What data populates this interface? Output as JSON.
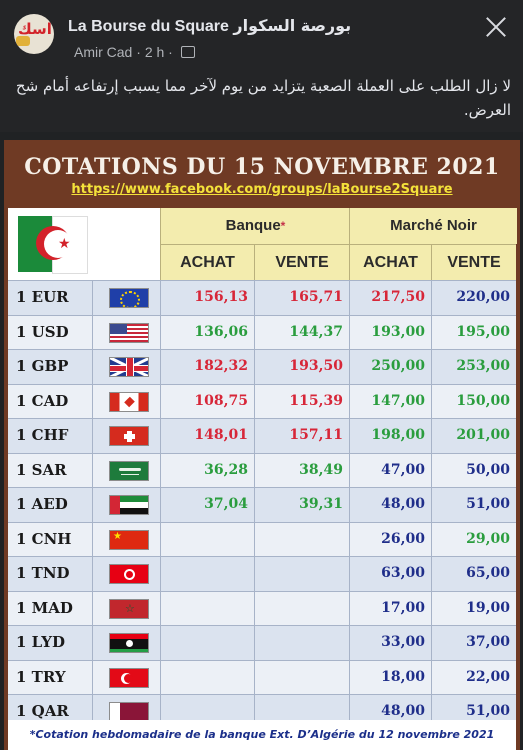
{
  "header": {
    "group_name": "La Bourse du Square",
    "group_name_ar": "بورصة السكوار",
    "author": "Amir Cad",
    "time": "2 h",
    "avatar_text": "اسك"
  },
  "post": {
    "text": "لا زال الطلب على العملة الصعبة يتزايد من يوم لآخر مما يسبب إرتفاعه أمام شح العرض."
  },
  "card": {
    "title": "COTATIONS DU 15 NOVEMBRE 2021",
    "link": "https://www.facebook.com/groups/laBourse2Square",
    "banque_label": "Banque",
    "banque_mark": "*",
    "marche_label": "Marché Noir",
    "achat_label": "ACHAT",
    "vente_label": "VENTE",
    "footer": "*Cotation hebdomadaire de la banque Ext. D’Algérie du 12 novembre 2021"
  },
  "rows": [
    {
      "code": "1 EUR",
      "flag": "eu-flag",
      "b_achat": "156,13",
      "b_vente": "165,71",
      "m_achat": "217,50",
      "m_vente": "220,00",
      "m_achat_color": "red"
    },
    {
      "code": "1 USD",
      "flag": "us-flag",
      "b_achat": "136,06",
      "b_vente": "144,37",
      "m_achat": "193,00",
      "m_vente": "195,00",
      "b_color": "green",
      "m_achat_color": "green",
      "m_vente_color": "green"
    },
    {
      "code": "1 GBP",
      "flag": "uk-flag",
      "b_achat": "182,32",
      "b_vente": "193,50",
      "m_achat": "250,00",
      "m_vente": "253,00",
      "m_achat_color": "green",
      "m_vente_color": "green"
    },
    {
      "code": "1 CAD",
      "flag": "ca-flag",
      "b_achat": "108,75",
      "b_vente": "115,39",
      "m_achat": "147,00",
      "m_vente": "150,00",
      "m_achat_color": "green",
      "m_vente_color": "green"
    },
    {
      "code": "1 CHF",
      "flag": "ch-flag",
      "b_achat": "148,01",
      "b_vente": "157,11",
      "m_achat": "198,00",
      "m_vente": "201,00",
      "m_achat_color": "green",
      "m_vente_color": "green"
    },
    {
      "code": "1 SAR",
      "flag": "sa-flag",
      "b_achat": "36,28",
      "b_vente": "38,49",
      "m_achat": "47,00",
      "m_vente": "50,00",
      "b_color": "green"
    },
    {
      "code": "1 AED",
      "flag": "ae-flag",
      "b_achat": "37,04",
      "b_vente": "39,31",
      "m_achat": "48,00",
      "m_vente": "51,00",
      "b_color": "green"
    },
    {
      "code": "1 CNH",
      "flag": "cn-flag",
      "b_achat": "",
      "b_vente": "",
      "m_achat": "26,00",
      "m_vente": "29,00",
      "m_vente_color": "green"
    },
    {
      "code": "1 TND",
      "flag": "tn-flag",
      "b_achat": "",
      "b_vente": "",
      "m_achat": "63,00",
      "m_vente": "65,00"
    },
    {
      "code": "1 MAD",
      "flag": "ma-flag",
      "b_achat": "",
      "b_vente": "",
      "m_achat": "17,00",
      "m_vente": "19,00"
    },
    {
      "code": "1 LYD",
      "flag": "ly-flag",
      "b_achat": "",
      "b_vente": "",
      "m_achat": "33,00",
      "m_vente": "37,00"
    },
    {
      "code": "1 TRY",
      "flag": "tr-flag",
      "b_achat": "",
      "b_vente": "",
      "m_achat": "18,00",
      "m_vente": "22,00"
    },
    {
      "code": "1 QAR",
      "flag": "qa-flag",
      "b_achat": "",
      "b_vente": "",
      "m_achat": "48,00",
      "m_vente": "51,00"
    }
  ],
  "colors": {
    "card_brown": "#6f3a24",
    "header_yellow": "#f3ecae",
    "row_blue": "#dbe3ef",
    "bank_red": "#d72638",
    "market_green": "#2a9d3e",
    "market_blue": "#1f2e8a"
  }
}
